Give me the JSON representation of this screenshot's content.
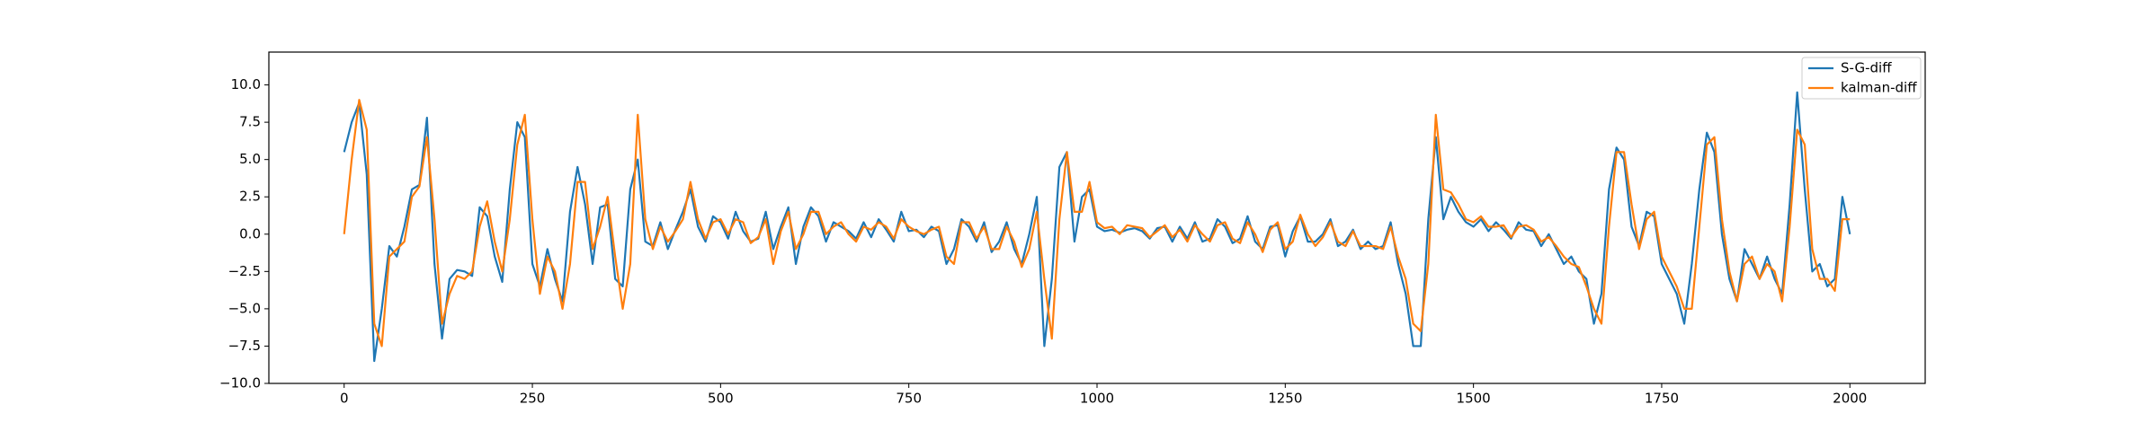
{
  "chart_data": {
    "type": "line",
    "x": [
      0,
      10,
      20,
      30,
      40,
      50,
      60,
      70,
      80,
      90,
      100,
      110,
      120,
      130,
      140,
      150,
      160,
      170,
      180,
      190,
      200,
      210,
      220,
      230,
      240,
      250,
      260,
      270,
      280,
      290,
      300,
      310,
      320,
      330,
      340,
      350,
      360,
      370,
      380,
      390,
      400,
      410,
      420,
      430,
      440,
      450,
      460,
      470,
      480,
      490,
      500,
      510,
      520,
      530,
      540,
      550,
      560,
      570,
      580,
      590,
      600,
      610,
      620,
      630,
      640,
      650,
      660,
      670,
      680,
      690,
      700,
      710,
      720,
      730,
      740,
      750,
      760,
      770,
      780,
      790,
      800,
      810,
      820,
      830,
      840,
      850,
      860,
      870,
      880,
      890,
      900,
      910,
      920,
      930,
      940,
      950,
      960,
      970,
      980,
      990,
      1000,
      1010,
      1020,
      1030,
      1040,
      1050,
      1060,
      1070,
      1080,
      1090,
      1100,
      1110,
      1120,
      1130,
      1140,
      1150,
      1160,
      1170,
      1180,
      1190,
      1200,
      1210,
      1220,
      1230,
      1240,
      1250,
      1260,
      1270,
      1280,
      1290,
      1300,
      1310,
      1320,
      1330,
      1340,
      1350,
      1360,
      1370,
      1380,
      1390,
      1400,
      1410,
      1420,
      1430,
      1440,
      1450,
      1460,
      1470,
      1480,
      1490,
      1500,
      1510,
      1520,
      1530,
      1540,
      1550,
      1560,
      1570,
      1580,
      1590,
      1600,
      1610,
      1620,
      1630,
      1640,
      1650,
      1660,
      1670,
      1680,
      1690,
      1700,
      1710,
      1720,
      1730,
      1740,
      1750,
      1760,
      1770,
      1780,
      1790,
      1800,
      1810,
      1820,
      1830,
      1840,
      1850,
      1860,
      1870,
      1880,
      1890,
      1900,
      1910,
      1920,
      1930,
      1940,
      1950,
      1960,
      1970,
      1980,
      1990,
      2000
    ],
    "series": [
      {
        "name": "S-G-diff",
        "color": "#1f77b4",
        "values": [
          5.5,
          7.5,
          8.8,
          4,
          -8.5,
          -5,
          -0.8,
          -1.5,
          0.5,
          3,
          3.3,
          7.8,
          -2,
          -7,
          -3,
          -2.4,
          -2.5,
          -2.8,
          1.8,
          1.2,
          -1.5,
          -3.2,
          3,
          7.5,
          6.5,
          -2,
          -3.5,
          -1,
          -3,
          -4.5,
          1.5,
          4.5,
          2,
          -2,
          1.8,
          2,
          -3,
          -3.5,
          3,
          5,
          -0.5,
          -0.8,
          0.8,
          -1,
          0.3,
          1.5,
          3,
          0.5,
          -0.5,
          1.2,
          0.8,
          -0.3,
          1.5,
          0.2,
          -0.5,
          -0.3,
          1.5,
          -1,
          0.5,
          1.8,
          -2,
          0.5,
          1.8,
          1.2,
          -0.5,
          0.8,
          0.5,
          0.2,
          -0.3,
          0.8,
          -0.2,
          1,
          0.3,
          -0.5,
          1.5,
          0.2,
          0.3,
          -0.2,
          0.5,
          0.2,
          -2,
          -1,
          1,
          0.5,
          -0.5,
          0.8,
          -1.2,
          -0.5,
          0.8,
          -1,
          -2,
          0,
          2.5,
          -7.5,
          -3,
          4.5,
          5.5,
          -0.5,
          2.5,
          3,
          0.5,
          0.2,
          0.3,
          0.1,
          0.3,
          0.4,
          0.2,
          -0.3,
          0.4,
          0.5,
          -0.5,
          0.5,
          -0.3,
          0.8,
          -0.5,
          -0.3,
          1,
          0.5,
          -0.6,
          -0.3,
          1.2,
          -0.5,
          -1,
          0.5,
          0.6,
          -1.5,
          0.2,
          1.2,
          -0.5,
          -0.5,
          0,
          1,
          -0.8,
          -0.5,
          0.3,
          -1,
          -0.5,
          -1,
          -0.8,
          0.8,
          -2,
          -4,
          -7.5,
          -7.5,
          1,
          6.5,
          1,
          2.5,
          1.5,
          0.8,
          0.5,
          1,
          0.2,
          0.8,
          0.3,
          -0.3,
          0.8,
          0.3,
          0.2,
          -0.8,
          0,
          -1,
          -2,
          -1.5,
          -2.5,
          -3,
          -6,
          -4,
          3,
          5.8,
          5,
          0.5,
          -0.8,
          1.5,
          1.2,
          -2,
          -3,
          -4,
          -6,
          -2,
          3,
          6.8,
          5.5,
          0,
          -3,
          -4.5,
          -1,
          -2,
          -3,
          -1.5,
          -3,
          -4,
          2,
          9.5,
          3,
          -2.5,
          -2,
          -3.5,
          -3,
          2.5,
          0
        ]
      },
      {
        "name": "kalman-diff",
        "color": "#ff7f0e",
        "values": [
          0,
          5,
          9,
          7,
          -6,
          -7.5,
          -1.5,
          -1,
          -0.5,
          2.5,
          3.2,
          6.5,
          1,
          -6,
          -4,
          -2.8,
          -3,
          -2.5,
          0.5,
          2.2,
          -0.5,
          -2.5,
          1,
          6,
          8,
          1,
          -4,
          -1.5,
          -2.5,
          -5,
          -2,
          3.5,
          3.5,
          -1,
          0.5,
          2.5,
          -1.5,
          -5,
          -2,
          8,
          1,
          -1,
          0.5,
          -0.5,
          0.2,
          1,
          3.5,
          1,
          -0.3,
          0.8,
          1,
          0,
          1,
          0.8,
          -0.6,
          -0.2,
          1,
          -2,
          0.2,
          1.5,
          -1,
          0,
          1.5,
          1.5,
          0,
          0.5,
          0.8,
          0,
          -0.5,
          0.5,
          0.3,
          0.8,
          0.5,
          -0.3,
          1,
          0.5,
          0.2,
          0,
          0.3,
          0.5,
          -1.5,
          -2,
          0.8,
          0.8,
          -0.3,
          0.5,
          -1,
          -1,
          0.5,
          -0.5,
          -2.2,
          -1,
          1.5,
          -3,
          -7,
          1,
          5.5,
          1.5,
          1.5,
          3.5,
          0.8,
          0.4,
          0.5,
          0,
          0.6,
          0.5,
          0.4,
          -0.2,
          0.2,
          0.6,
          -0.2,
          0.3,
          -0.5,
          0.6,
          0,
          -0.5,
          0.6,
          0.8,
          -0.3,
          -0.6,
          0.8,
          0,
          -1.2,
          0.3,
          0.8,
          -1,
          -0.5,
          1.3,
          0,
          -0.8,
          -0.2,
          0.8,
          -0.5,
          -0.8,
          0.2,
          -0.8,
          -0.8,
          -0.8,
          -1,
          0.5,
          -1.5,
          -3,
          -6,
          -6.5,
          -2,
          8,
          3,
          2.8,
          2,
          1,
          0.8,
          1.2,
          0.5,
          0.5,
          0.6,
          -0.2,
          0.5,
          0.6,
          0.3,
          -0.5,
          -0.2,
          -0.8,
          -1.5,
          -2,
          -2.2,
          -3.5,
          -5,
          -6,
          0.5,
          5.5,
          5.5,
          2,
          -1,
          1,
          1.5,
          -1.5,
          -2.5,
          -3.5,
          -5,
          -5,
          0.5,
          6,
          6.5,
          1,
          -2.5,
          -4.5,
          -2,
          -1.5,
          -3,
          -2,
          -2.5,
          -4.5,
          0.5,
          7,
          6,
          -1,
          -3,
          -3,
          -3.8,
          1,
          1
        ]
      }
    ],
    "xlim": [
      -100,
      2100
    ],
    "xticks": [
      0,
      250,
      500,
      750,
      1000,
      1250,
      1500,
      1750,
      2000
    ],
    "ylim": [
      -10,
      12.2
    ],
    "yticks": [
      {
        "value": -10,
        "label": "−10.0"
      },
      {
        "value": -7.5,
        "label": "−7.5"
      },
      {
        "value": -5,
        "label": "−5.0"
      },
      {
        "value": -2.5,
        "label": "−2.5"
      },
      {
        "value": 0,
        "label": "0.0"
      },
      {
        "value": 2.5,
        "label": "2.5"
      },
      {
        "value": 5,
        "label": "5.0"
      },
      {
        "value": 7.5,
        "label": "7.5"
      },
      {
        "value": 10,
        "label": "10.0"
      }
    ],
    "grid": false,
    "legend": "upper right"
  }
}
